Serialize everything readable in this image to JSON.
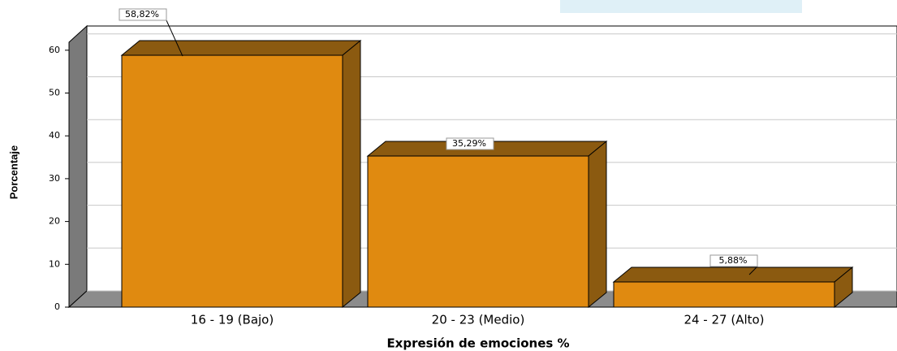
{
  "chart_data": {
    "type": "bar3d",
    "xlabel": "Expresión de emociones %",
    "ylabel": "Porcentaje",
    "categories": [
      "16 - 19 (Bajo)",
      "20 - 23 (Medio)",
      "24 - 27 (Alto)"
    ],
    "values": [
      58.82,
      35.29,
      5.88
    ],
    "value_labels": [
      "58,82%",
      "35,29%",
      "5,88%"
    ],
    "color": "#e08a10",
    "shade_color": "#8b5a10",
    "ylim": [
      0,
      63
    ],
    "yticks": [
      0,
      10,
      20,
      30,
      40,
      50,
      60
    ],
    "grid": true
  }
}
